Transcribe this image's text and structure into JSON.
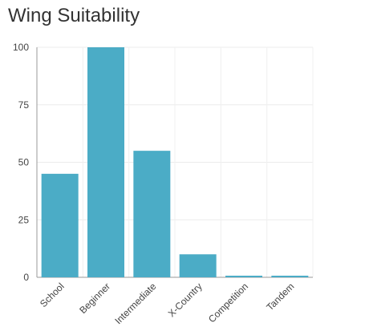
{
  "title": "Wing Suitability",
  "chart_data": {
    "type": "bar",
    "title": "Wing Suitability",
    "categories": [
      "School",
      "Beginner",
      "Intermediate",
      "X-Country",
      "Competition",
      "Tandem"
    ],
    "values": [
      45,
      100,
      55,
      10,
      0.5,
      0.5
    ],
    "xlabel": "",
    "ylabel": "",
    "ylim": [
      0,
      100
    ],
    "yticks": [
      0,
      25,
      50,
      75,
      100
    ],
    "grid": true,
    "bar_color": "#4bacc6"
  }
}
